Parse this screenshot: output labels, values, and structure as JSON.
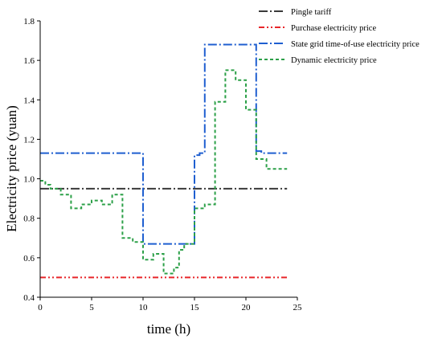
{
  "chart_data": {
    "type": "line",
    "title": "",
    "xlabel": "time (h)",
    "ylabel": "Electricity price (yuan)",
    "xlim": [
      0,
      25
    ],
    "ylim": [
      0.4,
      1.8
    ],
    "xticks": [
      0,
      5,
      10,
      15,
      20,
      25
    ],
    "yticks": [
      0.4,
      0.6,
      0.8,
      1.0,
      1.2,
      1.4,
      1.6,
      1.8
    ],
    "x_tick_labels": [
      "0",
      "5",
      "10",
      "15",
      "20",
      "25"
    ],
    "y_tick_labels": [
      "0.4",
      "0.6",
      "0.8",
      "1.0",
      "1.2",
      "1.4",
      "1.6",
      "1.8"
    ],
    "grid": false,
    "legend_position": "top-right",
    "series": [
      {
        "name": "Pingle tariff",
        "color": "#3a3a3a",
        "dash": "dashdot",
        "points": [
          [
            0,
            0.95
          ],
          [
            24,
            0.95
          ]
        ]
      },
      {
        "name": "Purchase electricity price",
        "color": "#e8262a",
        "dash": "dashdotdot",
        "points": [
          [
            0,
            0.5
          ],
          [
            24,
            0.5
          ]
        ]
      },
      {
        "name": "State grid time-of-use electricity price",
        "color": "#1f5fd0",
        "dash": "dashdot",
        "points": [
          [
            0,
            1.13
          ],
          [
            10,
            1.13
          ],
          [
            10,
            0.67
          ],
          [
            15,
            0.67
          ],
          [
            15,
            1.12
          ],
          [
            15.5,
            1.12
          ],
          [
            15.5,
            1.13
          ],
          [
            16,
            1.13
          ],
          [
            16,
            1.68
          ],
          [
            21,
            1.68
          ],
          [
            21,
            1.14
          ],
          [
            21.5,
            1.14
          ],
          [
            21.5,
            1.13
          ],
          [
            24,
            1.13
          ]
        ]
      },
      {
        "name": "Dynamic electricity price",
        "color": "#2ca048",
        "dash": "dashed",
        "points": [
          [
            0,
            0.99
          ],
          [
            0.5,
            0.99
          ],
          [
            0.5,
            0.97
          ],
          [
            1,
            0.97
          ],
          [
            1,
            0.95
          ],
          [
            2,
            0.95
          ],
          [
            2,
            0.92
          ],
          [
            3,
            0.92
          ],
          [
            3,
            0.85
          ],
          [
            4,
            0.85
          ],
          [
            4,
            0.87
          ],
          [
            5,
            0.87
          ],
          [
            5,
            0.89
          ],
          [
            6,
            0.89
          ],
          [
            6,
            0.87
          ],
          [
            7,
            0.87
          ],
          [
            7,
            0.92
          ],
          [
            8,
            0.92
          ],
          [
            8,
            0.7
          ],
          [
            9,
            0.7
          ],
          [
            9,
            0.68
          ],
          [
            10,
            0.68
          ],
          [
            10,
            0.59
          ],
          [
            11,
            0.59
          ],
          [
            11,
            0.62
          ],
          [
            12,
            0.62
          ],
          [
            12,
            0.52
          ],
          [
            13,
            0.52
          ],
          [
            13,
            0.55
          ],
          [
            13.5,
            0.55
          ],
          [
            13.5,
            0.64
          ],
          [
            14,
            0.64
          ],
          [
            14,
            0.67
          ],
          [
            15,
            0.67
          ],
          [
            15,
            0.85
          ],
          [
            16,
            0.85
          ],
          [
            16,
            0.87
          ],
          [
            17,
            0.87
          ],
          [
            17,
            1.39
          ],
          [
            18,
            1.39
          ],
          [
            18,
            1.55
          ],
          [
            19,
            1.55
          ],
          [
            19,
            1.5
          ],
          [
            20,
            1.5
          ],
          [
            20,
            1.35
          ],
          [
            21,
            1.35
          ],
          [
            21,
            1.1
          ],
          [
            22,
            1.1
          ],
          [
            22,
            1.05
          ],
          [
            24,
            1.05
          ]
        ]
      }
    ]
  }
}
